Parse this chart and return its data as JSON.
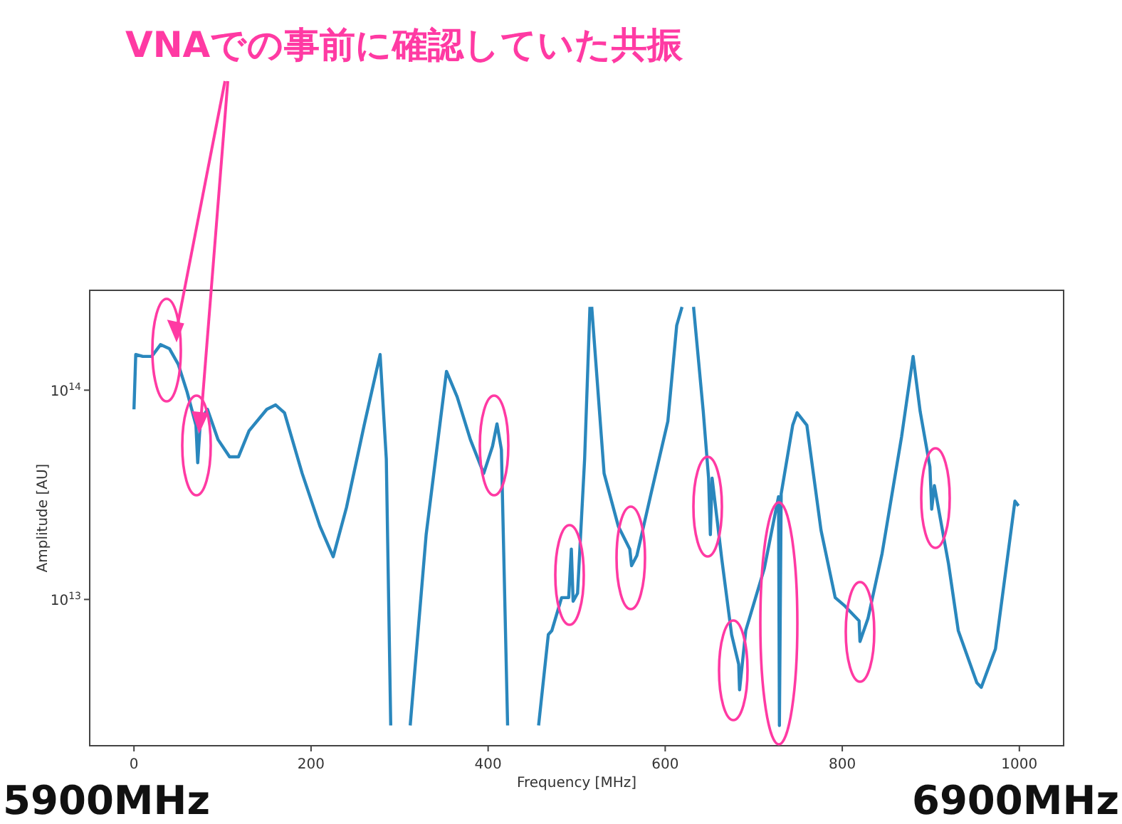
{
  "chart_data": {
    "type": "line",
    "title": "VNAでの事前に確認していた共振",
    "xlabel": "Frequency [MHz]",
    "ylabel": "Amplitude [AU]",
    "log": "y",
    "xlim": [
      -50,
      1050
    ],
    "xticks": [
      0,
      200,
      400,
      600,
      800,
      1000
    ],
    "ylim": [
      2000000000000.0,
      300000000000000.0
    ],
    "yticks": [
      {
        "value": 10000000000000.0,
        "label": "10$^{13}$"
      },
      {
        "value": 100000000000000.0,
        "label": "10$^{14}$"
      }
    ],
    "annotations": [
      "5900MHz",
      "6900MHz"
    ],
    "series": [
      {
        "color": "#2a87bd",
        "x": [
          0,
          2,
          10,
          20,
          30,
          40,
          50,
          60,
          70,
          72,
          75,
          83,
          95,
          108,
          118,
          130,
          150,
          160,
          170,
          190,
          210,
          225,
          240,
          260,
          278,
          285,
          290,
          301,
          312,
          330,
          353,
          365,
          380,
          395,
          405,
          410,
          415,
          422,
          440,
          457,
          468,
          472,
          483,
          491,
          494,
          496,
          501,
          509,
          515,
          516,
          517,
          531,
          547,
          560,
          562,
          568,
          584,
          603,
          613,
          619,
          625,
          632,
          643,
          649,
          651,
          653,
          664,
          675,
          683,
          684,
          691,
          712,
          728,
          729,
          731,
          744,
          749,
          760,
          776,
          792,
          803,
          819,
          820,
          829,
          845,
          867,
          880,
          888,
          899,
          901,
          904,
          920,
          931,
          952,
          957,
          973,
          995,
          999
        ],
        "values": [
          81000000000000.0,
          148000000000000.0,
          145000000000000.0,
          145000000000000.0,
          165000000000000.0,
          158000000000000.0,
          133000000000000.0,
          98000000000000.0,
          68000000000000.0,
          45000000000000.0,
          71000000000000.0,
          81000000000000.0,
          58000000000000.0,
          48000000000000.0,
          48000000000000.0,
          64000000000000.0,
          81000000000000.0,
          85000000000000.0,
          78000000000000.0,
          40000000000000.0,
          22400000000000.0,
          16000000000000.0,
          27500000000000.0,
          68000000000000.0,
          148000000000000.0,
          47000000000000.0,
          2500000000000.0,
          null,
          2500000000000.0,
          20400000000000.0,
          123000000000000.0,
          93000000000000.0,
          58000000000000.0,
          40000000000000.0,
          54000000000000.0,
          69000000000000.0,
          52000000000000.0,
          2500000000000.0,
          null,
          2500000000000.0,
          6800000000000.0,
          7100000000000.0,
          10200000000000.0,
          10200000000000.0,
          17400000000000.0,
          9800000000000.0,
          10700000000000.0,
          47000000000000.0,
          250000000000000.0,
          null,
          250000000000000.0,
          40000000000000.0,
          22400000000000.0,
          17400000000000.0,
          14500000000000.0,
          16200000000000.0,
          32000000000000.0,
          71000000000000.0,
          204000000000000.0,
          250000000000000.0,
          null,
          250000000000000.0,
          79000000000000.0,
          38000000000000.0,
          20400000000000.0,
          38000000000000.0,
          15500000000000.0,
          6800000000000.0,
          4900000000000.0,
          3700000000000.0,
          7100000000000.0,
          14100000000000.0,
          31000000000000.0,
          2500000000000.0,
          32000000000000.0,
          68000000000000.0,
          78000000000000.0,
          68000000000000.0,
          21400000000000.0,
          10200000000000.0,
          9300000000000.0,
          7900000000000.0,
          6300000000000.0,
          8100000000000.0,
          16600000000000.0,
          60000000000000.0,
          145000000000000.0,
          79000000000000.0,
          43000000000000.0,
          27000000000000.0,
          35000000000000.0,
          14800000000000.0,
          7100000000000.0,
          4000000000000.0,
          3800000000000.0,
          5800000000000.0,
          29500000000000.0,
          28000000000000.0
        ]
      }
    ]
  }
}
